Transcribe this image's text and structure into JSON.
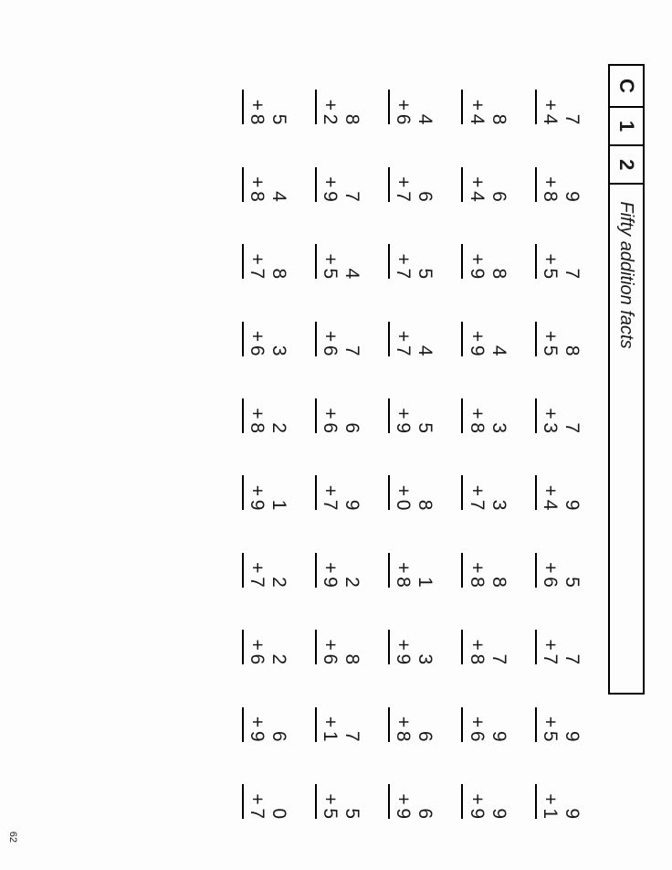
{
  "header": {
    "boxes": [
      "C",
      "1",
      "2"
    ],
    "title": "Fifty addition facts"
  },
  "page_number": "62",
  "problems": [
    [
      [
        7,
        4
      ],
      [
        9,
        8
      ],
      [
        7,
        5
      ],
      [
        8,
        5
      ],
      [
        7,
        3
      ],
      [
        9,
        4
      ],
      [
        5,
        6
      ],
      [
        7,
        7
      ],
      [
        9,
        5
      ],
      [
        9,
        1
      ]
    ],
    [
      [
        8,
        4
      ],
      [
        6,
        4
      ],
      [
        8,
        9
      ],
      [
        4,
        9
      ],
      [
        3,
        8
      ],
      [
        3,
        7
      ],
      [
        8,
        8
      ],
      [
        7,
        8
      ],
      [
        9,
        6
      ],
      [
        9,
        9
      ]
    ],
    [
      [
        4,
        6
      ],
      [
        6,
        7
      ],
      [
        5,
        7
      ],
      [
        4,
        7
      ],
      [
        5,
        9
      ],
      [
        8,
        0
      ],
      [
        1,
        8
      ],
      [
        3,
        9
      ],
      [
        6,
        8
      ],
      [
        6,
        9
      ]
    ],
    [
      [
        8,
        2
      ],
      [
        7,
        9
      ],
      [
        4,
        5
      ],
      [
        7,
        6
      ],
      [
        6,
        6
      ],
      [
        9,
        7
      ],
      [
        2,
        9
      ],
      [
        8,
        6
      ],
      [
        7,
        1
      ],
      [
        5,
        5
      ]
    ],
    [
      [
        5,
        8
      ],
      [
        4,
        8
      ],
      [
        8,
        7
      ],
      [
        3,
        6
      ],
      [
        2,
        8
      ],
      [
        1,
        9
      ],
      [
        2,
        7
      ],
      [
        2,
        6
      ],
      [
        6,
        9
      ],
      [
        0,
        7
      ]
    ]
  ],
  "style": {
    "font_size_problem": 21,
    "font_size_header_box": 22,
    "font_size_title": 20,
    "rule_color": "#000000",
    "text_color": "#1a1a1a",
    "background": "#fdfdfd"
  }
}
